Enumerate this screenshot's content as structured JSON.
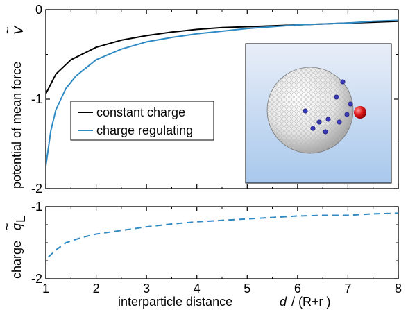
{
  "chart_data": [
    {
      "type": "line",
      "ylabel": "potential of mean force",
      "ylabel_symbol": "V",
      "ylabel_symbol_accent": "~",
      "xlim": [
        1,
        8
      ],
      "ylim": [
        -2,
        0
      ],
      "xticks": [
        1,
        2,
        3,
        4,
        5,
        6,
        7,
        8
      ],
      "yticks": [
        0,
        -1,
        -2
      ],
      "ytick_labels": [
        "0",
        "-1",
        "-2"
      ],
      "legend_position": "middle-left",
      "series": [
        {
          "name": "constant charge",
          "color": "#000000",
          "x": [
            1.0,
            1.2,
            1.5,
            2.0,
            2.5,
            3.0,
            3.5,
            4.0,
            4.5,
            5.0,
            5.5,
            6.0,
            6.5,
            7.0,
            7.5,
            8.0
          ],
          "y": [
            -0.94,
            -0.72,
            -0.56,
            -0.42,
            -0.34,
            -0.29,
            -0.25,
            -0.22,
            -0.2,
            -0.19,
            -0.18,
            -0.17,
            -0.16,
            -0.15,
            -0.14,
            -0.13
          ]
        },
        {
          "name": "charge regulating",
          "color": "#2f8ac4",
          "x": [
            1.0,
            1.1,
            1.2,
            1.4,
            1.6,
            2.0,
            2.5,
            3.0,
            3.5,
            4.0,
            4.5,
            5.0,
            5.5,
            6.0,
            6.5,
            7.0,
            7.5,
            8.0
          ],
          "y": [
            -1.75,
            -1.35,
            -1.12,
            -0.88,
            -0.74,
            -0.56,
            -0.44,
            -0.36,
            -0.31,
            -0.27,
            -0.24,
            -0.21,
            -0.19,
            -0.17,
            -0.16,
            -0.15,
            -0.13,
            -0.12
          ]
        }
      ]
    },
    {
      "type": "line",
      "xlabel": "interparticle distance",
      "xlabel_symbol": "d",
      "xlabel_unit": "/ (R+r )",
      "ylabel": "charge",
      "ylabel_symbol": "q",
      "ylabel_symbol_accent": "~",
      "ylabel_subscript": "L",
      "xlim": [
        1,
        8
      ],
      "ylim": [
        -2,
        -1
      ],
      "xticks": [
        1,
        2,
        3,
        4,
        5,
        6,
        7,
        8
      ],
      "xtick_labels": [
        "1",
        "2",
        "3",
        "4",
        "5",
        "6",
        "7",
        "8"
      ],
      "yticks": [
        -1,
        -2
      ],
      "ytick_labels": [
        "-1",
        "-2"
      ],
      "series": [
        {
          "color": "#2f8ac4",
          "dash": true,
          "x": [
            1.05,
            1.2,
            1.4,
            1.7,
            2.0,
            2.5,
            3.0,
            3.5,
            4.0,
            4.5,
            5.0,
            5.5,
            6.0,
            6.5,
            7.0,
            7.5,
            8.0
          ],
          "y": [
            -1.7,
            -1.6,
            -1.5,
            -1.43,
            -1.38,
            -1.33,
            -1.28,
            -1.24,
            -1.21,
            -1.19,
            -1.17,
            -1.15,
            -1.13,
            -1.12,
            -1.12,
            -1.1,
            -1.09
          ]
        }
      ]
    }
  ],
  "inset": {
    "description_icon": "sphere-with-ions-render",
    "background_top": "#e9eef8",
    "background_bottom": "#a8c8ec",
    "sphere_color": "#e8e8e8",
    "ion_color": "#3a3ab8",
    "probe_color": "#d01010"
  }
}
